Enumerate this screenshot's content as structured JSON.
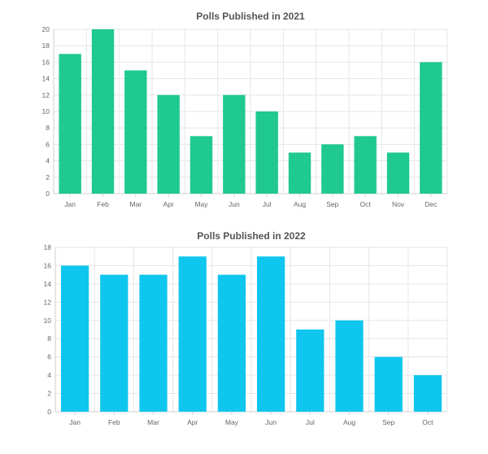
{
  "chart_data": [
    {
      "type": "bar",
      "title": "Polls Published in 2021",
      "categories": [
        "Jan",
        "Feb",
        "Mar",
        "Apr",
        "May",
        "Jun",
        "Jul",
        "Aug",
        "Sep",
        "Oct",
        "Nov",
        "Dec"
      ],
      "values": [
        17,
        20,
        15,
        12,
        7,
        12,
        10,
        5,
        6,
        7,
        5,
        16
      ],
      "ylim": [
        0,
        20
      ],
      "yticks": [
        0,
        2,
        4,
        6,
        8,
        10,
        12,
        14,
        16,
        18,
        20
      ],
      "grid": true,
      "color": "#20c98f"
    },
    {
      "type": "bar",
      "title": "Polls Published in 2022",
      "categories": [
        "Jan",
        "Feb",
        "Mar",
        "Apr",
        "May",
        "Jun",
        "Jul",
        "Aug",
        "Sep",
        "Oct"
      ],
      "values": [
        16,
        15,
        15,
        17,
        15,
        17,
        9,
        10,
        6,
        4
      ],
      "ylim": [
        0,
        18
      ],
      "yticks": [
        0,
        2,
        4,
        6,
        8,
        10,
        12,
        14,
        16,
        18
      ],
      "grid": true,
      "color": "#0ec6ee"
    }
  ]
}
